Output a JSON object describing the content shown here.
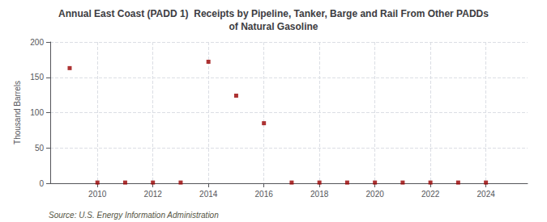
{
  "chart_data": {
    "type": "scatter",
    "title": "Annual East Coast (PADD 1)  Receipts by Pipeline, Tanker, Barge and Rail From Other PADDs\nof Natural Gasoline",
    "ylabel": "Thousand Barrels",
    "annotations": [
      "Source: U.S. Energy Information Administration"
    ],
    "x": [
      2009,
      2010,
      2011,
      2012,
      2013,
      2014,
      2015,
      2016,
      2017,
      2018,
      2019,
      2020,
      2021,
      2022,
      2023,
      2024
    ],
    "values": [
      163,
      1,
      1,
      1,
      1,
      172,
      124,
      85,
      1,
      1,
      1,
      1,
      1,
      1,
      1,
      1
    ],
    "color": "#990000",
    "marker": "square",
    "xlim": [
      2008.3,
      2025.5
    ],
    "ylim": [
      0,
      200
    ],
    "xticks": [
      2010,
      2012,
      2014,
      2016,
      2018,
      2020,
      2022,
      2024
    ],
    "yticks": [
      0,
      50,
      100,
      150,
      200
    ],
    "grid": true
  }
}
